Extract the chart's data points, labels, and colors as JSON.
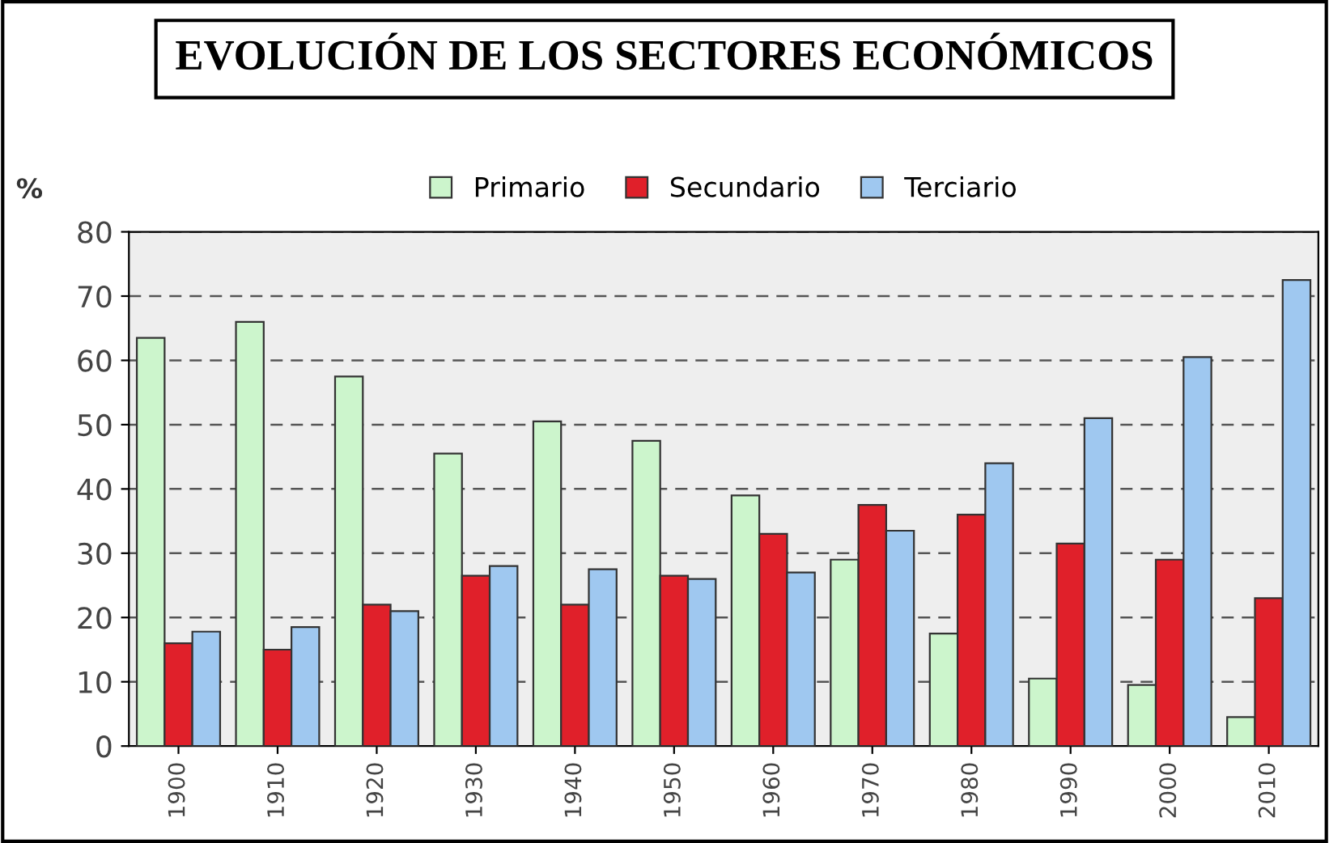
{
  "chart_data": {
    "type": "bar",
    "title": "EVOLUCIÓN DE LOS SECTORES ECONÓMICOS",
    "ylabel": "%",
    "categories": [
      "1900",
      "1910",
      "1920",
      "1930",
      "1940",
      "1950",
      "1960",
      "1970",
      "1980",
      "1990",
      "2000",
      "2010"
    ],
    "series": [
      {
        "name": "Primario",
        "color": "#ccf5cc",
        "values": [
          63.5,
          66,
          57.5,
          45.5,
          50.5,
          47.5,
          39,
          29,
          17.5,
          10.5,
          9.5,
          4.5
        ]
      },
      {
        "name": "Secundario",
        "color": "#e0202a",
        "values": [
          16,
          15,
          22,
          26.5,
          22,
          26.5,
          33,
          37.5,
          36,
          31.5,
          29,
          23
        ]
      },
      {
        "name": "Terciario",
        "color": "#9fc8f0",
        "values": [
          17.8,
          18.5,
          21,
          28,
          27.5,
          26,
          27,
          33.5,
          44,
          51,
          60.5,
          72.5
        ]
      }
    ],
    "ylim": [
      0,
      80
    ],
    "yticks": [
      0,
      10,
      20,
      30,
      40,
      50,
      60,
      70,
      80
    ],
    "grid": "y",
    "legend": "top"
  }
}
